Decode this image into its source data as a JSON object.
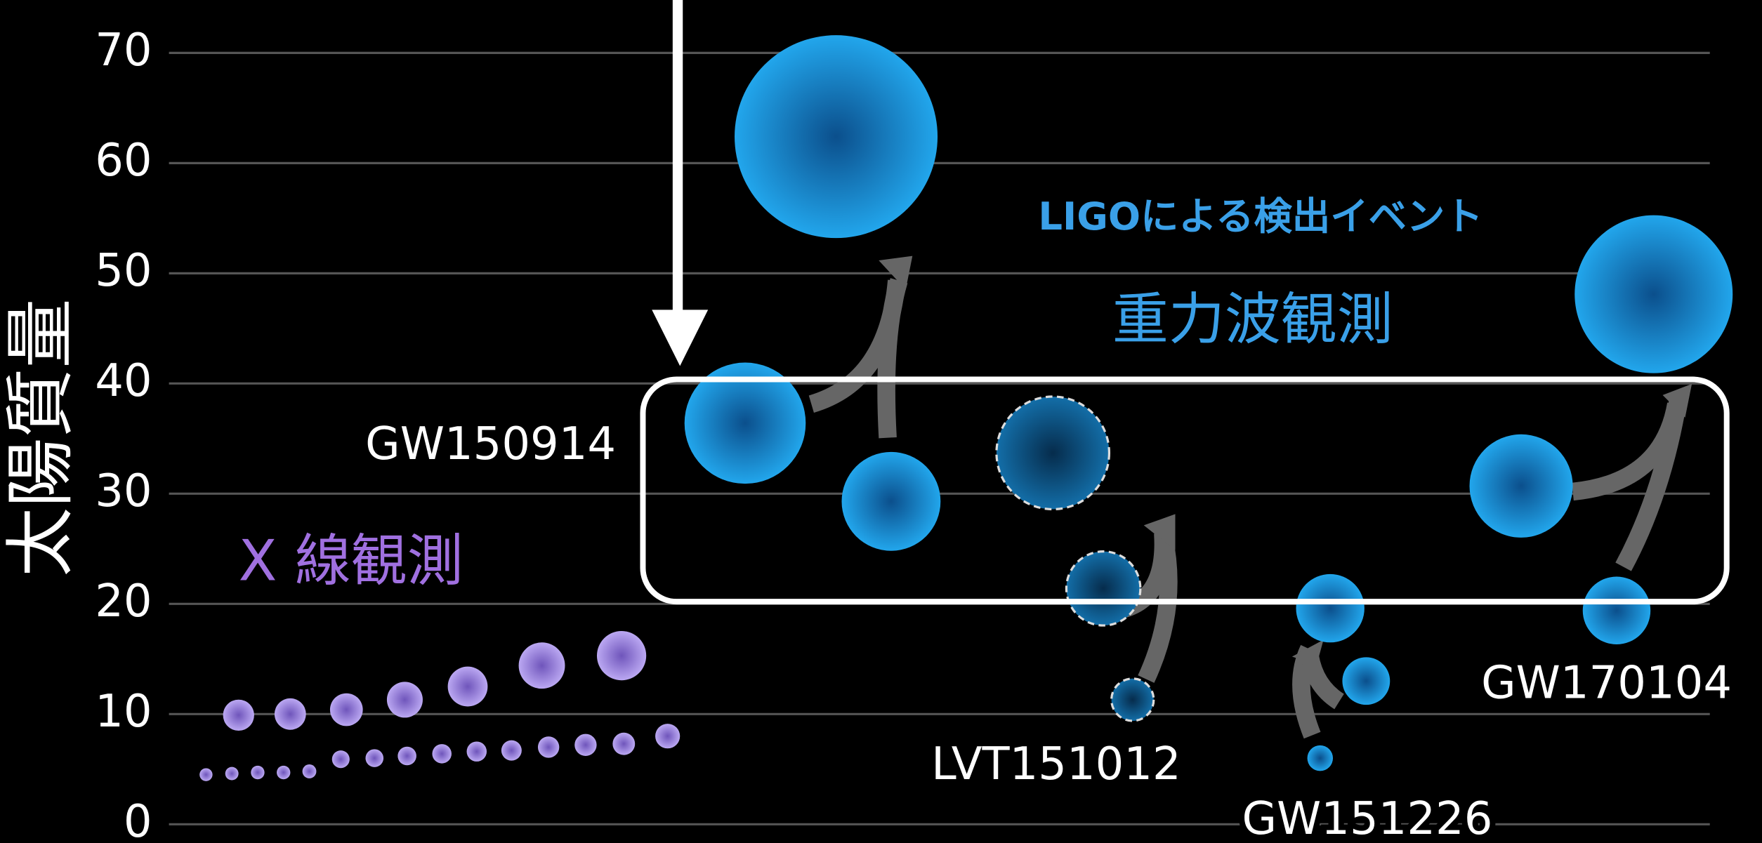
{
  "chart_data": {
    "type": "scatter",
    "y_label": "太陽質量",
    "annotations": [
      "LIGOによる検出イベント",
      "重力波観測"
    ],
    "ylim": [
      -1.7,
      74.8
    ],
    "yticks": [
      0,
      10,
      20,
      30,
      40,
      50,
      60,
      70
    ],
    "grid": true,
    "series": [
      {
        "name": "X 線観測",
        "color": "#a58be6",
        "values": [
          9.9,
          10,
          10.4,
          11.3,
          12.5,
          14.4,
          15.3,
          4.5,
          4.6,
          4.7,
          4.7,
          4.8,
          5.9,
          6.0,
          6.2,
          6.4,
          6.6,
          6.7,
          7.0,
          7.2,
          7.3,
          8.0
        ]
      },
      {
        "name": "GW150914",
        "color": "#1e9be0",
        "values": [
          36.4,
          29.3,
          62.4
        ]
      },
      {
        "name": "LVT151012",
        "color": "#1e9be0",
        "style": "dashed",
        "values": [
          33.7,
          21.4,
          11.3
        ]
      },
      {
        "name": "GW151226",
        "color": "#1e9be0",
        "values": [
          19.6,
          13,
          6
        ]
      },
      {
        "name": "GW170104",
        "color": "#1e9be0",
        "values": [
          30.7,
          19.4,
          48.1
        ]
      }
    ]
  }
}
